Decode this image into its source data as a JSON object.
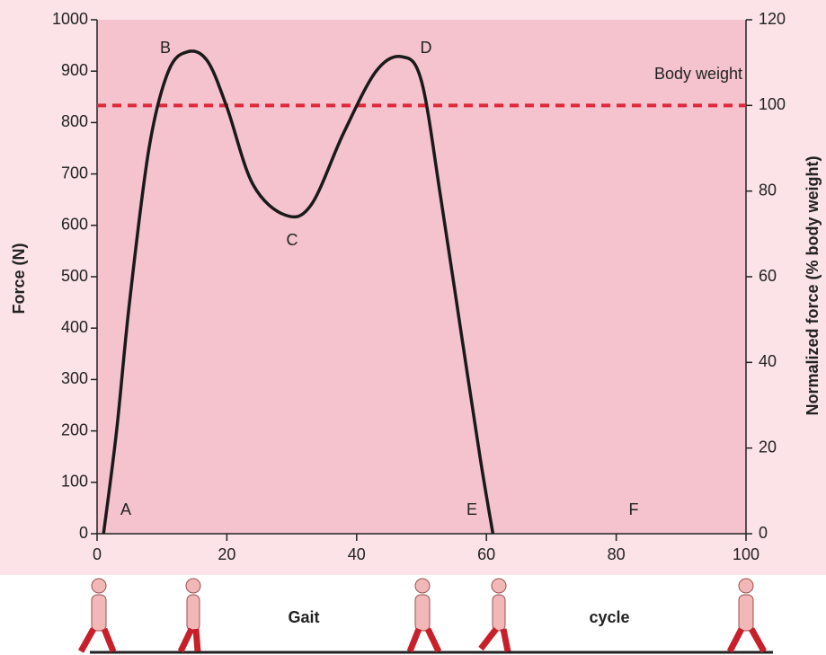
{
  "chart_data": {
    "type": "line",
    "ylabel": "Force (N)",
    "y2label": "Normalized force (% body weight)",
    "x": [
      1,
      3,
      5,
      8,
      11,
      14,
      17,
      20,
      24,
      29,
      33,
      38,
      43,
      47,
      50,
      53,
      56,
      59,
      61
    ],
    "series": [
      {
        "color": "#1a1a1a",
        "values": [
          0,
          200,
          450,
          750,
          900,
          938,
          920,
          830,
          680,
          620,
          640,
          780,
          900,
          928,
          880,
          650,
          400,
          150,
          0
        ]
      }
    ],
    "xlim": [
      0,
      100
    ],
    "xticks": [
      0,
      20,
      40,
      60,
      80,
      100
    ],
    "ylim": [
      0,
      1000
    ],
    "yticks": [
      0,
      100,
      200,
      300,
      400,
      500,
      600,
      700,
      800,
      900,
      1000
    ],
    "y2lim": [
      0,
      120
    ],
    "y2ticks": [
      0,
      20,
      40,
      60,
      80,
      100,
      120
    ],
    "reference_lines": [
      {
        "label": "Body weight",
        "value": 100,
        "axis": "y2",
        "color": "#e0283a"
      }
    ],
    "annotations": [
      "A",
      "B",
      "C",
      "D",
      "E",
      "F"
    ],
    "footer_labels": [
      "Gait",
      "cycle"
    ]
  }
}
